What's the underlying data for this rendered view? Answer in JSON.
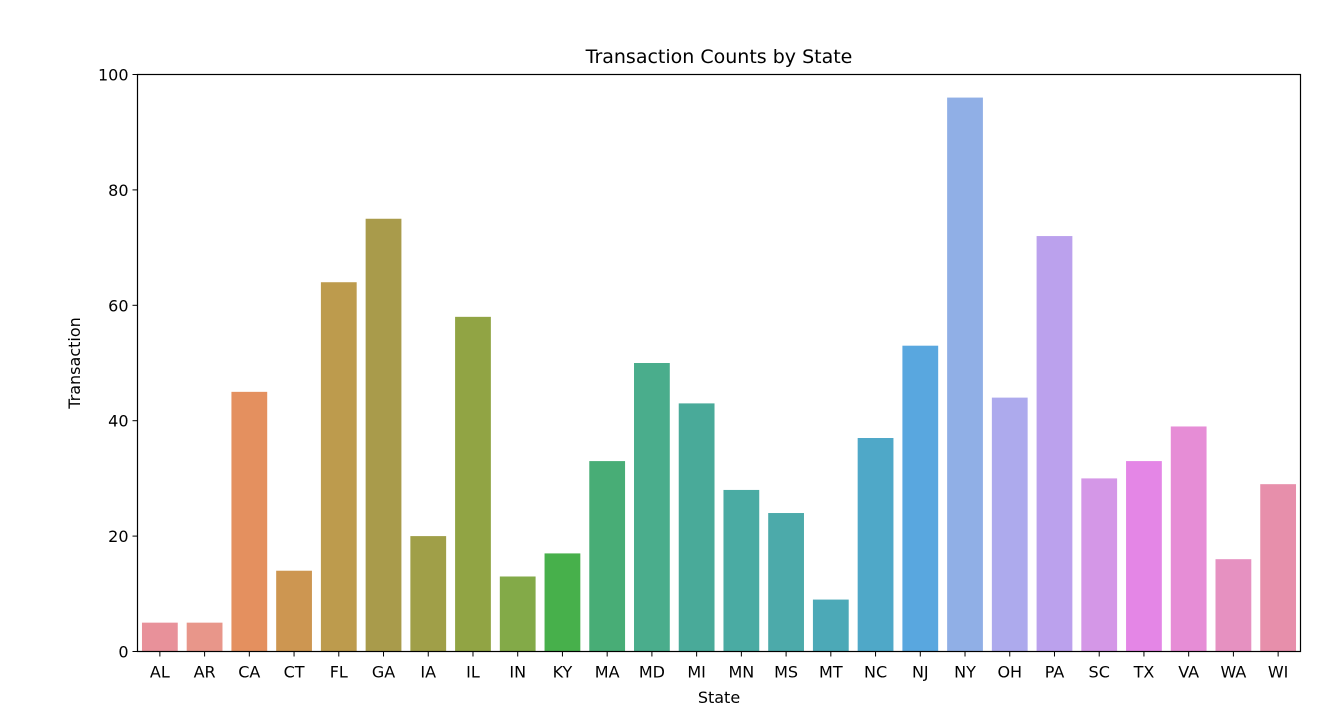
{
  "chart_data": {
    "type": "bar",
    "title": "Transaction Counts by State",
    "xlabel": "State",
    "ylabel": "Transaction",
    "ylim": [
      0,
      100
    ],
    "yticks": [
      0,
      20,
      40,
      60,
      80,
      100
    ],
    "grid": false,
    "categories": [
      "AL",
      "AR",
      "CA",
      "CT",
      "FL",
      "GA",
      "IA",
      "IL",
      "IN",
      "KY",
      "MA",
      "MD",
      "MI",
      "MN",
      "MS",
      "MT",
      "NC",
      "NJ",
      "NY",
      "OH",
      "PA",
      "SC",
      "TX",
      "VA",
      "WA",
      "WI"
    ],
    "values": [
      5,
      5,
      45,
      14,
      64,
      75,
      20,
      58,
      13,
      17,
      33,
      50,
      43,
      28,
      24,
      9,
      37,
      53,
      96,
      44,
      72,
      30,
      33,
      39,
      16,
      29
    ],
    "colors": [
      "#e8919a",
      "#e8968a",
      "#e4905f",
      "#cd9651",
      "#bd9b4d",
      "#a99b4b",
      "#a09f48",
      "#91a444",
      "#83aa48",
      "#47b04b",
      "#48ad76",
      "#4aad8c",
      "#49aa99",
      "#4aaba3",
      "#4caaaa",
      "#4ca9b7",
      "#4fa8c8",
      "#59a7df",
      "#90afe6",
      "#adaaed",
      "#bba1ed",
      "#d497e7",
      "#e486e6",
      "#e68dd6",
      "#e691c1",
      "#e78fab"
    ]
  }
}
